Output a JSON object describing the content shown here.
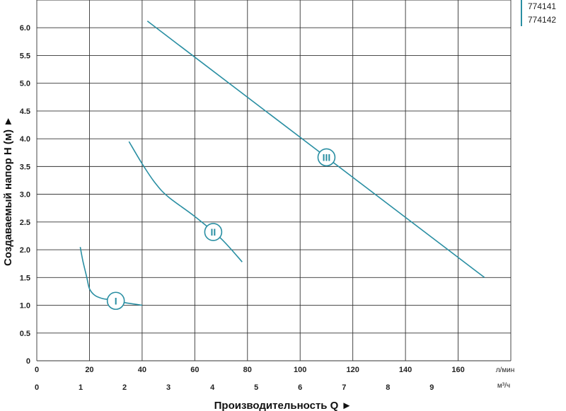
{
  "models": [
    "774141",
    "774142"
  ],
  "colors": {
    "curve": "#2a8fa3",
    "grid": "#333333",
    "model_bar": "#2a8fa3"
  },
  "chart_data": {
    "type": "line",
    "title": "",
    "xlabel": "Производительность Q ►",
    "ylabel": "Создаваемый напор H (м) ►",
    "x_unit_primary": "л/мин",
    "x_unit_secondary": "м³/ч",
    "xlim": [
      0,
      180
    ],
    "ylim": [
      0,
      6.5
    ],
    "x_ticks": [
      "0",
      "20",
      "40",
      "60",
      "80",
      "100",
      "120",
      "140",
      "160"
    ],
    "x2_ticks": [
      "0",
      "1",
      "2",
      "3",
      "4",
      "5",
      "6",
      "7",
      "8",
      "9"
    ],
    "y_ticks": [
      "0",
      "0.5",
      "1.0",
      "1.5",
      "2.0",
      "2.5",
      "3.0",
      "3.5",
      "4.0",
      "4.5",
      "5.0",
      "5.5",
      "6.0"
    ],
    "grid": true,
    "series": [
      {
        "name": "I",
        "x": [
          16.5,
          17.5,
          19,
          20,
          22,
          25,
          28,
          33,
          40
        ],
        "y": [
          2.05,
          1.8,
          1.5,
          1.3,
          1.18,
          1.12,
          1.1,
          1.05,
          1.0
        ]
      },
      {
        "name": "II",
        "x": [
          35,
          40,
          45,
          50,
          60,
          70,
          78
        ],
        "y": [
          3.95,
          3.55,
          3.2,
          2.95,
          2.6,
          2.2,
          1.78
        ]
      },
      {
        "name": "III",
        "x": [
          42,
          170
        ],
        "y": [
          6.12,
          1.5
        ]
      }
    ]
  }
}
